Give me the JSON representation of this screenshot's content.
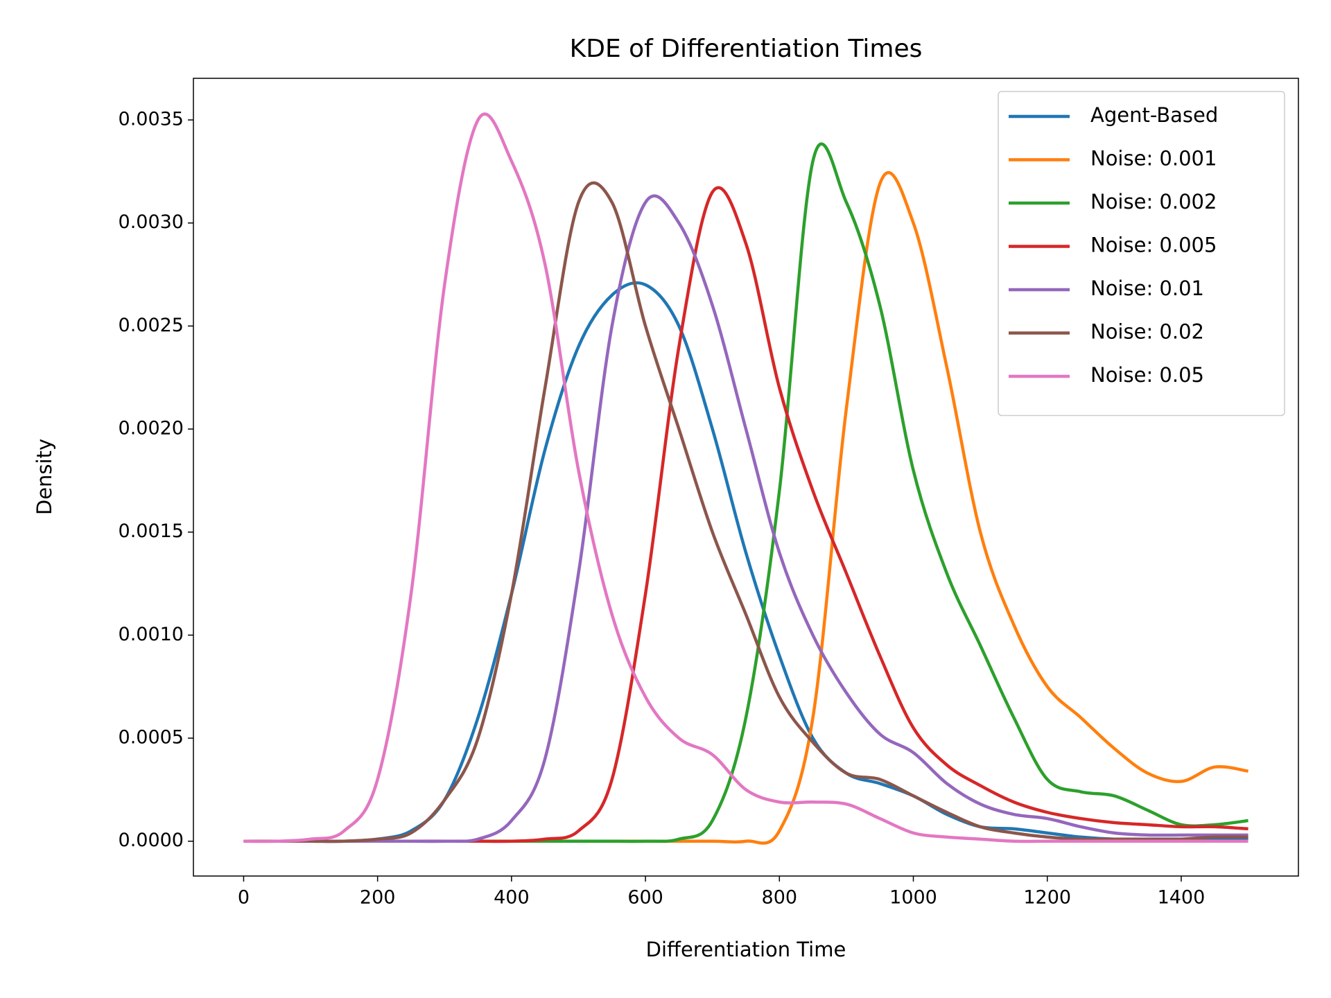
{
  "chart_data": {
    "type": "line",
    "title": "KDE of Differentiation Times",
    "xlabel": "Differentiation Time",
    "ylabel": "Density",
    "x": [
      0,
      50,
      100,
      150,
      200,
      250,
      300,
      350,
      400,
      450,
      500,
      550,
      600,
      650,
      700,
      750,
      800,
      850,
      900,
      950,
      1000,
      1050,
      1100,
      1150,
      1200,
      1250,
      1300,
      1350,
      1400,
      1450,
      1500
    ],
    "series": [
      {
        "name": "Agent-Based",
        "color": "#1f77b4",
        "values": [
          0,
          0,
          0,
          0,
          1e-05,
          5e-05,
          0.0002,
          0.0006,
          0.0012,
          0.0019,
          0.0024,
          0.00265,
          0.0027,
          0.0025,
          0.002,
          0.0014,
          0.0009,
          0.0005,
          0.00033,
          0.00028,
          0.00022,
          0.00013,
          7e-05,
          6e-05,
          4e-05,
          2e-05,
          1e-05,
          1e-05,
          1e-05,
          1e-05,
          1e-05
        ]
      },
      {
        "name": "Noise: 0.001",
        "color": "#ff7f0e",
        "values": [
          0,
          0,
          0,
          0,
          0,
          0,
          0,
          0,
          0,
          0,
          0,
          0,
          0,
          0,
          0,
          0,
          5e-05,
          0.0006,
          0.0021,
          0.00319,
          0.003,
          0.0023,
          0.0015,
          0.00105,
          0.00075,
          0.0006,
          0.00045,
          0.00033,
          0.00029,
          0.00036,
          0.00034
        ]
      },
      {
        "name": "Noise: 0.002",
        "color": "#2ca02c",
        "values": [
          0,
          0,
          0,
          0,
          0,
          0,
          0,
          0,
          0,
          0,
          0,
          0,
          0,
          1e-05,
          0.0001,
          0.0006,
          0.0017,
          0.0033,
          0.0031,
          0.0026,
          0.0018,
          0.0013,
          0.00095,
          0.0006,
          0.0003,
          0.00024,
          0.00022,
          0.00015,
          8e-05,
          8e-05,
          0.0001
        ]
      },
      {
        "name": "Noise: 0.005",
        "color": "#d62728",
        "values": [
          0,
          0,
          0,
          0,
          0,
          0,
          0,
          0,
          0,
          1e-05,
          5e-05,
          0.0003,
          0.0012,
          0.0024,
          0.00315,
          0.0029,
          0.0022,
          0.0017,
          0.0013,
          0.0009,
          0.00055,
          0.00037,
          0.00027,
          0.00019,
          0.00014,
          0.00011,
          9e-05,
          8e-05,
          7e-05,
          7e-05,
          6e-05
        ]
      },
      {
        "name": "Noise: 0.01",
        "color": "#9467bd",
        "values": [
          0,
          0,
          0,
          0,
          0,
          0,
          0,
          1e-05,
          0.0001,
          0.0004,
          0.0013,
          0.0025,
          0.0031,
          0.003,
          0.0026,
          0.002,
          0.0014,
          0.001,
          0.00072,
          0.00052,
          0.00043,
          0.00028,
          0.00018,
          0.00013,
          0.00011,
          7e-05,
          4e-05,
          3e-05,
          3e-05,
          3e-05,
          3e-05
        ]
      },
      {
        "name": "Noise: 0.02",
        "color": "#8c564b",
        "values": [
          0,
          0,
          0,
          0,
          1e-05,
          4e-05,
          0.0002,
          0.0005,
          0.0012,
          0.0022,
          0.0031,
          0.0031,
          0.0025,
          0.002,
          0.0015,
          0.0011,
          0.0007,
          0.00048,
          0.00033,
          0.0003,
          0.00022,
          0.00014,
          7e-05,
          4e-05,
          2e-05,
          1e-05,
          1e-05,
          1e-05,
          1e-05,
          2e-05,
          2e-05
        ]
      },
      {
        "name": "Noise: 0.05",
        "color": "#e377c2",
        "values": [
          0,
          0,
          1e-05,
          5e-05,
          0.0003,
          0.0012,
          0.0027,
          0.0035,
          0.0033,
          0.0028,
          0.0018,
          0.0011,
          0.0007,
          0.0005,
          0.00042,
          0.00025,
          0.00019,
          0.00019,
          0.00018,
          0.00011,
          4e-05,
          2e-05,
          1e-05,
          0,
          0,
          0,
          0,
          0,
          0,
          0,
          0
        ]
      }
    ],
    "xlim": [
      -75,
      1575
    ],
    "ylim": [
      -0.000169,
      0.003702
    ],
    "xticks": [
      0,
      200,
      400,
      600,
      800,
      1000,
      1200,
      1400
    ],
    "yticks": [
      {
        "value": 0,
        "label": "0.0000"
      },
      {
        "value": 0.0005,
        "label": "0.0005"
      },
      {
        "value": 0.001,
        "label": "0.0010"
      },
      {
        "value": 0.0015,
        "label": "0.0015"
      },
      {
        "value": 0.002,
        "label": "0.0020"
      },
      {
        "value": 0.0025,
        "label": "0.0025"
      },
      {
        "value": 0.003,
        "label": "0.0030"
      },
      {
        "value": 0.0035,
        "label": "0.0035"
      }
    ],
    "legend": "upper right",
    "grid": false
  }
}
